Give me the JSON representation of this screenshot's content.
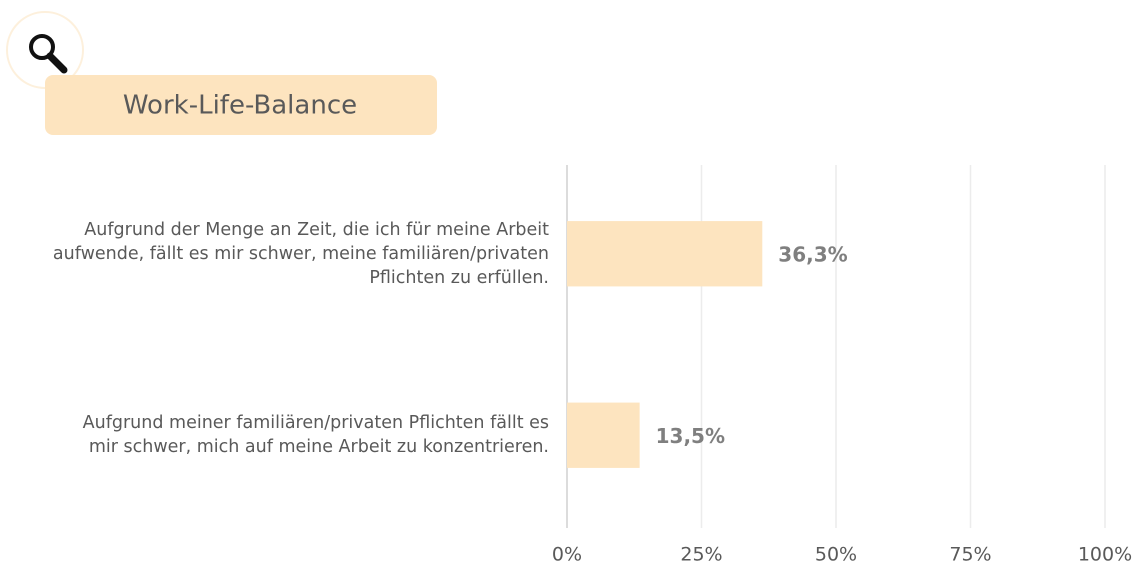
{
  "chart_data": {
    "type": "bar",
    "orientation": "horizontal",
    "title": "Work-Life-Balance",
    "categories": [
      "Aufgrund der Menge an Zeit, die ich für meine Arbeit aufwende, fällt es mir schwer, meine familiären/privaten Pflichten zu erfüllen.",
      "Aufgrund meiner familiären/privaten Pflichten fällt es mir schwer, mich auf meine Arbeit zu konzentrieren."
    ],
    "values": [
      36.3,
      13.5
    ],
    "value_labels": [
      "36,3%",
      "13,5%"
    ],
    "color": "#fde4bf",
    "xlim": [
      0,
      100
    ],
    "xticks": [
      {
        "value": 0,
        "label": "0%"
      },
      {
        "value": 25,
        "label": "25%"
      },
      {
        "value": 50,
        "label": "50%"
      },
      {
        "value": 75,
        "label": "75%"
      },
      {
        "value": 100,
        "label": "100%"
      }
    ],
    "grid": true
  }
}
